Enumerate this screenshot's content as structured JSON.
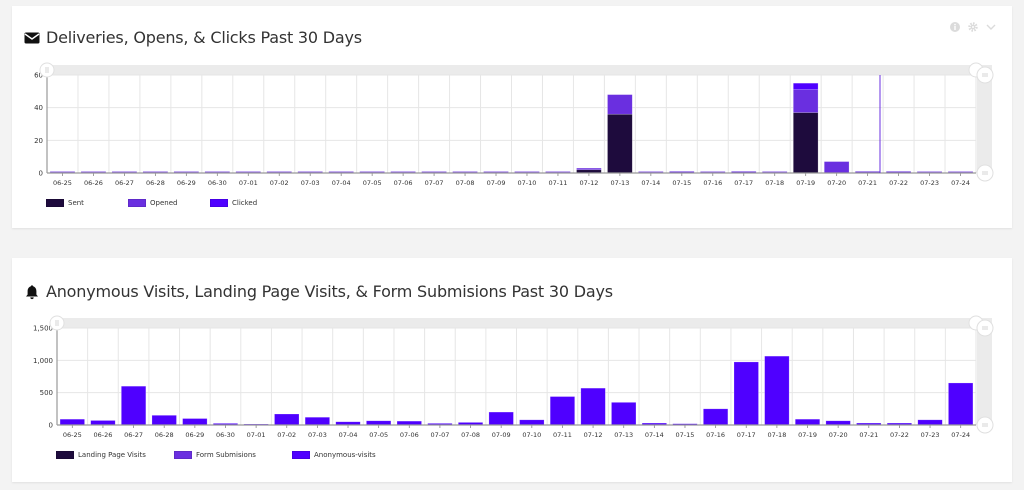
{
  "colors": {
    "sent": "#1e0b3d",
    "opened": "#6a2fe0",
    "clicked": "#4f00ff",
    "landing": "#1e0b3d",
    "form": "#6a2fe0",
    "anonymous": "#4f00ff",
    "grid": "#e6e6e6",
    "scrollbar": "#ebebeb"
  },
  "card1": {
    "title": "Deliveries, Opens, & Clicks Past 30 Days",
    "icon": "envelope-icon",
    "tools": [
      "info-icon",
      "gear-icon",
      "chevron-down-icon"
    ],
    "legend": [
      {
        "label": "Sent",
        "color": "#1e0b3d"
      },
      {
        "label": "Opened",
        "color": "#6a2fe0"
      },
      {
        "label": "Clicked",
        "color": "#4f00ff"
      }
    ]
  },
  "card2": {
    "title": "Anonymous Visits, Landing Page Visits, & Form Submisions Past 30 Days",
    "icon": "bell-icon",
    "legend": [
      {
        "label": "Landing Page Visits",
        "color": "#1e0b3d"
      },
      {
        "label": "Form Submisions",
        "color": "#6a2fe0"
      },
      {
        "label": "Anonymous-visits",
        "color": "#4f00ff"
      }
    ]
  },
  "chart_data": [
    {
      "type": "bar",
      "stacked": true,
      "title": "Deliveries, Opens, & Clicks Past 30 Days",
      "xlabel": "",
      "ylabel": "",
      "ylim": [
        0,
        60
      ],
      "yticks": [
        0,
        20,
        40,
        60
      ],
      "grid": true,
      "legend_position": "bottom",
      "categories": [
        "06-25",
        "06-26",
        "06-27",
        "06-28",
        "06-29",
        "06-30",
        "07-01",
        "07-02",
        "07-03",
        "07-04",
        "07-05",
        "07-06",
        "07-07",
        "07-08",
        "07-09",
        "07-10",
        "07-11",
        "07-12",
        "07-13",
        "07-14",
        "07-15",
        "07-16",
        "07-17",
        "07-18",
        "07-19",
        "07-20",
        "07-21",
        "07-22",
        "07-23",
        "07-24"
      ],
      "series": [
        {
          "name": "Sent",
          "values": [
            0,
            0,
            0,
            0,
            0,
            0,
            0,
            0,
            0,
            0,
            0,
            0,
            0,
            0,
            0,
            0,
            0,
            2,
            36,
            0,
            0,
            0,
            0,
            0,
            37,
            0,
            0,
            0,
            0,
            0
          ]
        },
        {
          "name": "Opened",
          "values": [
            0,
            0,
            0,
            0,
            0,
            0,
            0,
            0,
            0,
            0,
            0,
            0,
            0,
            0,
            0,
            0,
            0,
            1,
            12,
            0,
            1,
            0,
            1,
            0,
            14,
            7,
            1,
            1,
            0,
            0
          ]
        },
        {
          "name": "Clicked",
          "values": [
            0,
            0,
            0,
            0,
            0,
            0,
            0,
            0,
            0,
            0,
            0,
            0,
            0,
            0,
            0,
            0,
            0,
            0,
            0,
            0,
            0,
            0,
            0,
            0,
            4,
            0,
            0,
            0,
            0,
            0
          ]
        }
      ]
    },
    {
      "type": "bar",
      "stacked": true,
      "title": "Anonymous Visits, Landing Page Visits, & Form Submisions Past 30 Days",
      "xlabel": "",
      "ylabel": "",
      "ylim": [
        0,
        1500
      ],
      "yticks": [
        0,
        500,
        1000,
        1500
      ],
      "ytick_labels": [
        "0",
        "500",
        "1,000",
        "1,500"
      ],
      "grid": true,
      "legend_position": "bottom",
      "categories": [
        "06-25",
        "06-26",
        "06-27",
        "06-28",
        "06-29",
        "06-30",
        "07-01",
        "07-02",
        "07-03",
        "07-04",
        "07-05",
        "07-06",
        "07-07",
        "07-08",
        "07-09",
        "07-10",
        "07-11",
        "07-12",
        "07-13",
        "07-14",
        "07-15",
        "07-16",
        "07-17",
        "07-18",
        "07-19",
        "07-20",
        "07-21",
        "07-22",
        "07-23",
        "07-24"
      ],
      "series": [
        {
          "name": "Landing Page Visits",
          "values": [
            0,
            0,
            0,
            0,
            0,
            0,
            0,
            0,
            0,
            0,
            0,
            0,
            0,
            0,
            0,
            0,
            0,
            0,
            0,
            0,
            0,
            0,
            0,
            0,
            0,
            0,
            0,
            0,
            0,
            0
          ]
        },
        {
          "name": "Form Submisions",
          "values": [
            0,
            0,
            0,
            0,
            0,
            0,
            0,
            0,
            0,
            0,
            0,
            0,
            0,
            0,
            0,
            0,
            0,
            0,
            0,
            0,
            0,
            0,
            0,
            0,
            0,
            0,
            0,
            0,
            0,
            0
          ]
        },
        {
          "name": "Anonymous-visits",
          "values": [
            90,
            70,
            600,
            150,
            100,
            25,
            15,
            170,
            120,
            50,
            65,
            60,
            25,
            40,
            200,
            80,
            440,
            570,
            350,
            30,
            20,
            250,
            975,
            1065,
            90,
            65,
            30,
            30,
            80,
            650
          ]
        }
      ]
    }
  ]
}
